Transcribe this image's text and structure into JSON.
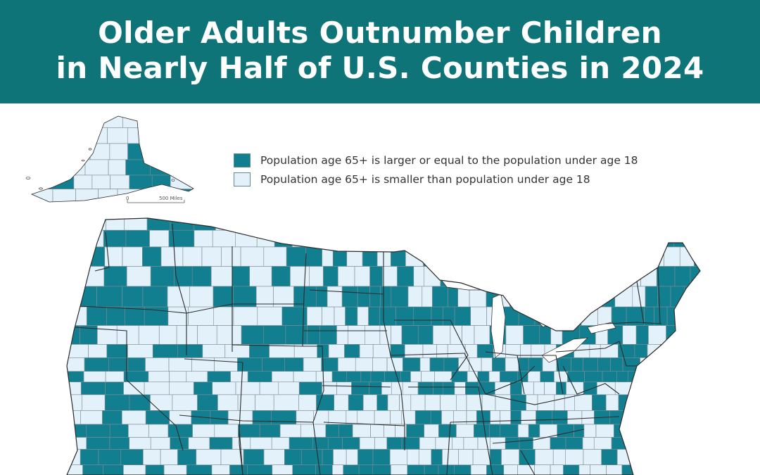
{
  "title": {
    "line1": "Older Adults Outnumber Children",
    "line2": "in Nearly Half of U.S. Counties in 2024"
  },
  "legend": {
    "items": [
      {
        "label": "Population age 65+ is larger or equal to the population under age 18",
        "color": "#127f91"
      },
      {
        "label": "Population age 65+ is smaller than population under age 18",
        "color": "#e2f1fa"
      }
    ]
  },
  "scale_bar": {
    "start": "0",
    "end": "500 Miles"
  },
  "colors": {
    "banner": "#0f7478",
    "older_majority": "#127f91",
    "children_majority": "#e2f1fa",
    "county_border": "#7f8c92",
    "state_border": "#2b2b2b"
  }
}
